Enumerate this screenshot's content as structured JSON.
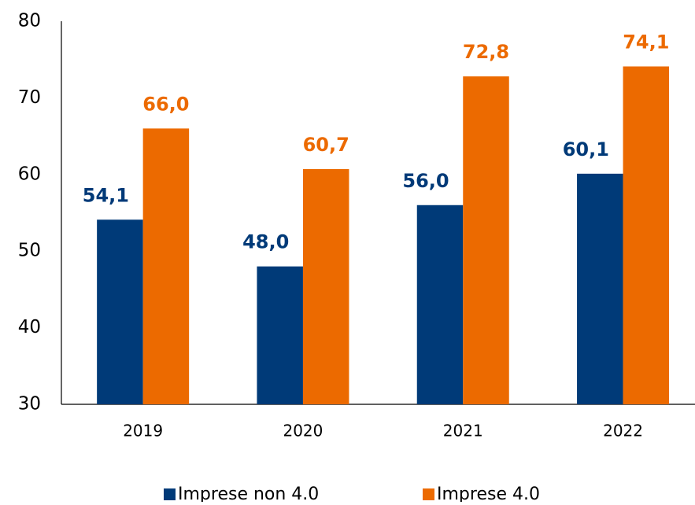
{
  "chart_data": {
    "type": "bar",
    "categories": [
      "2019",
      "2020",
      "2021",
      "2022"
    ],
    "series": [
      {
        "name": "Imprese non 4.0",
        "color": "#003a78",
        "values": [
          54.1,
          48.0,
          56.0,
          60.1
        ],
        "value_labels": [
          "54,1",
          "48,0",
          "56,0",
          "60,1"
        ]
      },
      {
        "name": "Imprese 4.0",
        "color": "#ec6a00",
        "values": [
          66.0,
          60.7,
          72.8,
          74.1
        ],
        "value_labels": [
          "66,0",
          "60,7",
          "72,8",
          "74,1"
        ]
      }
    ],
    "ylim": [
      30,
      80
    ],
    "yticks": [
      30,
      40,
      50,
      60,
      70,
      80
    ],
    "grid": false,
    "legend": "bottom"
  }
}
